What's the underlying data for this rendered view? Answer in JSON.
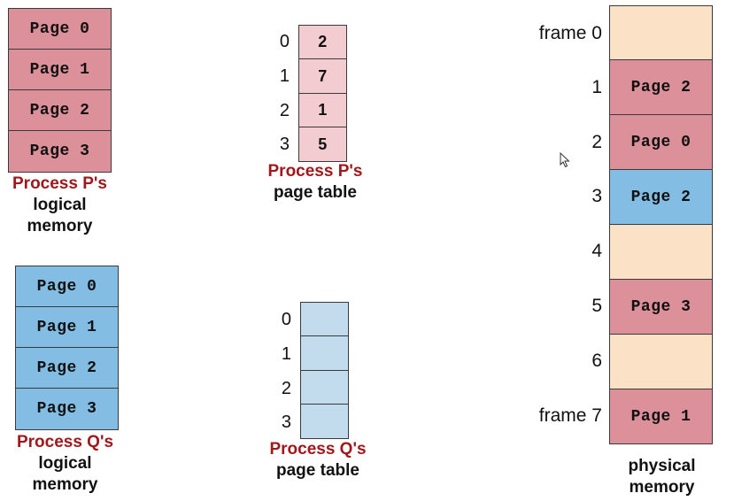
{
  "title_fragment": "P",
  "process_p": {
    "logical_memory": [
      "Page 0",
      "Page 1",
      "Page 2",
      "Page 3"
    ],
    "caption": [
      "Process P's",
      "logical",
      "memory"
    ],
    "page_table": {
      "indices": [
        "0",
        "1",
        "2",
        "3"
      ],
      "frames": [
        "2",
        "7",
        "1",
        "5"
      ],
      "caption": [
        "Process P's",
        "page table"
      ]
    }
  },
  "process_q": {
    "logical_memory": [
      "Page 0",
      "Page 1",
      "Page 2",
      "Page 3"
    ],
    "caption": [
      "Process Q's",
      "logical",
      "memory"
    ],
    "page_table": {
      "indices": [
        "0",
        "1",
        "2",
        "3"
      ],
      "frames": [
        "",
        "",
        "",
        ""
      ],
      "caption": [
        "Process Q's",
        "page table"
      ]
    }
  },
  "physical_memory": {
    "frame_labels": [
      "frame 0",
      "1",
      "2",
      "3",
      "4",
      "5",
      "6",
      "frame 7"
    ],
    "frames": [
      {
        "label": "",
        "owner": "free"
      },
      {
        "label": "Page 2",
        "owner": "P"
      },
      {
        "label": "Page 0",
        "owner": "P"
      },
      {
        "label": "Page 2",
        "owner": "Q"
      },
      {
        "label": "",
        "owner": "free"
      },
      {
        "label": "Page 3",
        "owner": "P"
      },
      {
        "label": "",
        "owner": "free"
      },
      {
        "label": "Page 1",
        "owner": "P"
      }
    ],
    "caption": [
      "physical",
      "memory"
    ]
  },
  "colors": {
    "process_p": "#dc909a",
    "process_q": "#83bde3",
    "free": "#fbe1c6",
    "caption_red": "#a0181c"
  }
}
